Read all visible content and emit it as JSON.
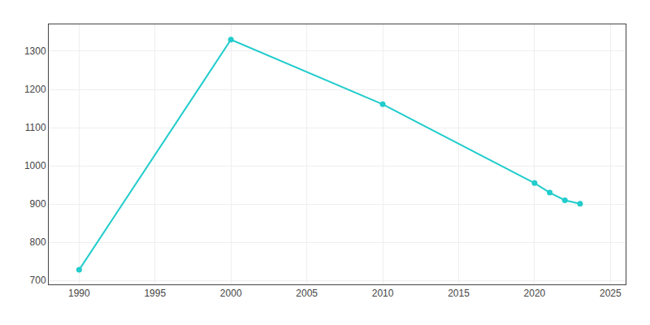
{
  "chart_data": {
    "type": "line",
    "x": [
      1990,
      2000,
      2010,
      2020,
      2021,
      2022,
      2023
    ],
    "values": [
      728,
      1330,
      1161,
      955,
      930,
      910,
      901
    ],
    "color": "#22CCCC",
    "marker": "circle",
    "xlim": [
      1988,
      2026
    ],
    "ylim": [
      690,
      1370
    ],
    "xticks": [
      1990,
      1995,
      2000,
      2005,
      2010,
      2015,
      2020,
      2025
    ],
    "yticks": [
      700,
      800,
      900,
      1000,
      1100,
      1200,
      1300
    ],
    "grid": true
  }
}
